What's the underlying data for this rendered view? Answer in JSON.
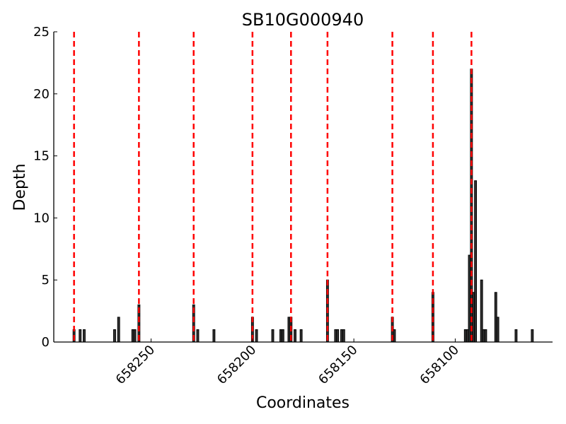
{
  "chart_data": {
    "type": "bar",
    "title": "SB10G000940",
    "xlabel": "Coordinates",
    "ylabel": "Depth",
    "xlim": [
      658298,
      658052
    ],
    "x_reversed": true,
    "ylim": [
      0,
      25
    ],
    "xticks": [
      658250,
      658200,
      658150,
      658100
    ],
    "yticks": [
      0,
      5,
      10,
      15,
      20,
      25
    ],
    "grid": false,
    "bar_color": "#333333",
    "line_color": "#ff0000",
    "bars": [
      {
        "x": 658288,
        "y": 1
      },
      {
        "x": 658285,
        "y": 1
      },
      {
        "x": 658283,
        "y": 1
      },
      {
        "x": 658268,
        "y": 1
      },
      {
        "x": 658266,
        "y": 2
      },
      {
        "x": 658259,
        "y": 1
      },
      {
        "x": 658258,
        "y": 1
      },
      {
        "x": 658256,
        "y": 3
      },
      {
        "x": 658229,
        "y": 3
      },
      {
        "x": 658227,
        "y": 1
      },
      {
        "x": 658219,
        "y": 1
      },
      {
        "x": 658200,
        "y": 2
      },
      {
        "x": 658198,
        "y": 1
      },
      {
        "x": 658190,
        "y": 1
      },
      {
        "x": 658186,
        "y": 1
      },
      {
        "x": 658185,
        "y": 1
      },
      {
        "x": 658182,
        "y": 2
      },
      {
        "x": 658181,
        "y": 2
      },
      {
        "x": 658179,
        "y": 1
      },
      {
        "x": 658176,
        "y": 1
      },
      {
        "x": 658163,
        "y": 5
      },
      {
        "x": 658159,
        "y": 1
      },
      {
        "x": 658158,
        "y": 1
      },
      {
        "x": 658156,
        "y": 1
      },
      {
        "x": 658155,
        "y": 1
      },
      {
        "x": 658131,
        "y": 2
      },
      {
        "x": 658130,
        "y": 1
      },
      {
        "x": 658111,
        "y": 4
      },
      {
        "x": 658095,
        "y": 1
      },
      {
        "x": 658094,
        "y": 1
      },
      {
        "x": 658093,
        "y": 7
      },
      {
        "x": 658092,
        "y": 22
      },
      {
        "x": 658091,
        "y": 4
      },
      {
        "x": 658090,
        "y": 13
      },
      {
        "x": 658087,
        "y": 5
      },
      {
        "x": 658086,
        "y": 1
      },
      {
        "x": 658085,
        "y": 1
      },
      {
        "x": 658080,
        "y": 4
      },
      {
        "x": 658079,
        "y": 2
      },
      {
        "x": 658070,
        "y": 1
      },
      {
        "x": 658062,
        "y": 1
      }
    ],
    "vlines": [
      658288,
      658256,
      658229,
      658200,
      658181,
      658163,
      658131,
      658111,
      658092
    ]
  }
}
